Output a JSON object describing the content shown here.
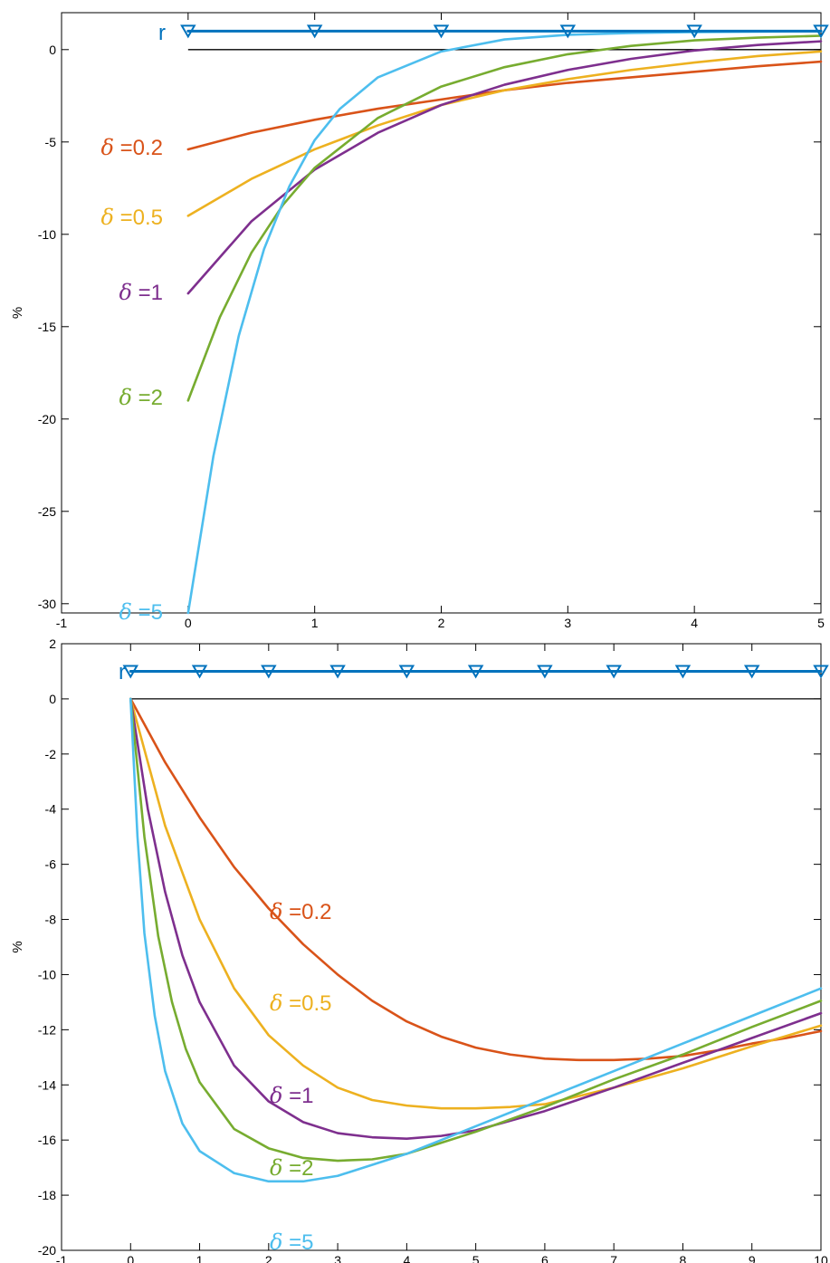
{
  "colors": {
    "r": "#0072BD",
    "d02": "#D95319",
    "d05": "#EDB120",
    "d1": "#7E2F8E",
    "d2": "#77AC30",
    "d5": "#4DBEEE",
    "axis": "#000000"
  },
  "chart_data": [
    {
      "type": "line",
      "title": "",
      "xlabel": "",
      "ylabel": "%",
      "xlim": [
        -1,
        5
      ],
      "ylim": [
        -30.5,
        2
      ],
      "xticks": [
        -1,
        0,
        1,
        2,
        3,
        4,
        5
      ],
      "yticks": [
        0,
        -5,
        -10,
        -15,
        -20,
        -25,
        -30
      ],
      "grid": false,
      "legend": "none; series labelled inline at left",
      "reference_line": {
        "y": 0,
        "x_from": 0,
        "x_to": 5
      },
      "series": [
        {
          "name": "r",
          "label_parts": [
            "r",
            ""
          ],
          "color_key": "r",
          "marker": "triangle-down",
          "x": [
            0,
            1,
            2,
            3,
            4,
            5
          ],
          "y": [
            1,
            1,
            1,
            1,
            1,
            1
          ],
          "marker_x": [
            0,
            1,
            2,
            3,
            4,
            5
          ]
        },
        {
          "name": "δ =0.2",
          "label_parts": [
            "δ",
            " =0.2"
          ],
          "color_key": "d02",
          "x": [
            0,
            0.5,
            1,
            1.5,
            2,
            2.5,
            3,
            3.5,
            4,
            4.5,
            5
          ],
          "y": [
            -5.4,
            -4.5,
            -3.8,
            -3.2,
            -2.7,
            -2.2,
            -1.8,
            -1.5,
            -1.2,
            -0.9,
            -0.65
          ]
        },
        {
          "name": "δ =0.5",
          "label_parts": [
            "δ",
            " =0.5"
          ],
          "color_key": "d05",
          "x": [
            0,
            0.5,
            1,
            1.5,
            2,
            2.5,
            3,
            3.5,
            4,
            4.5,
            5
          ],
          "y": [
            -9.0,
            -7.0,
            -5.4,
            -4.1,
            -3.0,
            -2.2,
            -1.6,
            -1.1,
            -0.7,
            -0.35,
            -0.1
          ]
        },
        {
          "name": "δ =1",
          "label_parts": [
            "δ",
            " =1"
          ],
          "color_key": "d1",
          "x": [
            0,
            0.5,
            1,
            1.5,
            2,
            2.5,
            3,
            3.5,
            4,
            4.5,
            5
          ],
          "y": [
            -13.2,
            -9.3,
            -6.5,
            -4.5,
            -3.0,
            -1.9,
            -1.1,
            -0.5,
            -0.05,
            0.25,
            0.45
          ]
        },
        {
          "name": "δ =2",
          "label_parts": [
            "δ",
            " =2"
          ],
          "color_key": "d2",
          "x": [
            0,
            0.25,
            0.5,
            0.75,
            1,
            1.5,
            2,
            2.5,
            3,
            3.5,
            4,
            4.5,
            5
          ],
          "y": [
            -19.0,
            -14.5,
            -11.0,
            -8.4,
            -6.4,
            -3.7,
            -2.0,
            -0.95,
            -0.25,
            0.2,
            0.5,
            0.65,
            0.75
          ]
        },
        {
          "name": "δ =5",
          "label_parts": [
            "δ",
            " =5"
          ],
          "color_key": "d5",
          "x": [
            0,
            0.2,
            0.4,
            0.6,
            0.8,
            1,
            1.2,
            1.5,
            2,
            2.5,
            3,
            3.5,
            4,
            5
          ],
          "y": [
            -30.5,
            -22.0,
            -15.5,
            -10.8,
            -7.4,
            -4.9,
            -3.2,
            -1.5,
            -0.1,
            0.55,
            0.8,
            0.9,
            0.95,
            1.0
          ]
        }
      ]
    },
    {
      "type": "line",
      "title": "",
      "xlabel": "",
      "ylabel": "%",
      "xlim": [
        -1,
        10
      ],
      "ylim": [
        -20,
        2
      ],
      "xticks": [
        -1,
        0,
        1,
        2,
        3,
        4,
        5,
        6,
        7,
        8,
        9,
        10
      ],
      "yticks": [
        2,
        0,
        -2,
        -4,
        -6,
        -8,
        -10,
        -12,
        -14,
        -16,
        -18,
        -20
      ],
      "grid": false,
      "legend": "none; series labelled inline",
      "reference_line": {
        "y": 0,
        "x_from": 0,
        "x_to": 10
      },
      "series": [
        {
          "name": "r",
          "label_parts": [
            "r",
            ""
          ],
          "color_key": "r",
          "marker": "triangle-down",
          "x": [
            0,
            10
          ],
          "y": [
            1,
            1
          ],
          "marker_x": [
            0,
            1,
            2,
            3,
            4,
            5,
            6,
            7,
            8,
            9,
            10
          ]
        },
        {
          "name": "δ =0.2",
          "label_parts": [
            "δ",
            " =0.2"
          ],
          "color_key": "d02",
          "x": [
            0,
            0.5,
            1,
            1.5,
            2,
            2.5,
            3,
            3.5,
            4,
            4.5,
            5,
            5.5,
            6,
            6.5,
            7,
            7.5,
            8,
            8.5,
            9,
            9.5,
            10
          ],
          "y": [
            0,
            -2.3,
            -4.3,
            -6.1,
            -7.6,
            -8.9,
            -10.0,
            -10.95,
            -11.7,
            -12.25,
            -12.65,
            -12.9,
            -13.05,
            -13.1,
            -13.1,
            -13.05,
            -12.95,
            -12.75,
            -12.5,
            -12.3,
            -12.05
          ]
        },
        {
          "name": "δ =0.5",
          "label_parts": [
            "δ",
            " =0.5"
          ],
          "color_key": "d05",
          "x": [
            0,
            0.5,
            1,
            1.5,
            2,
            2.5,
            3,
            3.5,
            4,
            4.5,
            5,
            5.5,
            6,
            7,
            8,
            9,
            10
          ],
          "y": [
            0,
            -4.6,
            -8.0,
            -10.5,
            -12.2,
            -13.3,
            -14.1,
            -14.55,
            -14.75,
            -14.85,
            -14.85,
            -14.8,
            -14.7,
            -14.1,
            -13.4,
            -12.6,
            -11.85
          ]
        },
        {
          "name": "δ =1",
          "label_parts": [
            "δ",
            " =1"
          ],
          "color_key": "d1",
          "x": [
            0,
            0.25,
            0.5,
            0.75,
            1,
            1.5,
            2,
            2.5,
            3,
            3.5,
            4,
            4.5,
            5,
            6,
            7,
            8,
            9,
            10
          ],
          "y": [
            0,
            -4.0,
            -7.0,
            -9.3,
            -11.0,
            -13.3,
            -14.6,
            -15.35,
            -15.75,
            -15.9,
            -15.95,
            -15.85,
            -15.65,
            -14.95,
            -14.1,
            -13.2,
            -12.3,
            -11.4
          ]
        },
        {
          "name": "δ =2",
          "label_parts": [
            "δ",
            " =2"
          ],
          "color_key": "d2",
          "x": [
            0,
            0.2,
            0.4,
            0.6,
            0.8,
            1,
            1.5,
            2,
            2.5,
            3,
            3.5,
            4,
            5,
            6,
            7,
            8,
            9,
            10
          ],
          "y": [
            0,
            -5.0,
            -8.6,
            -11.0,
            -12.7,
            -13.9,
            -15.6,
            -16.3,
            -16.65,
            -16.75,
            -16.7,
            -16.5,
            -15.7,
            -14.8,
            -13.8,
            -12.9,
            -11.9,
            -10.95
          ]
        },
        {
          "name": "δ =5",
          "label_parts": [
            "δ",
            " =5"
          ],
          "color_key": "d5",
          "x": [
            0,
            0.1,
            0.2,
            0.35,
            0.5,
            0.75,
            1,
            1.5,
            2,
            2.5,
            3,
            4,
            5,
            6,
            7,
            8,
            9,
            10
          ],
          "y": [
            0,
            -5.0,
            -8.5,
            -11.5,
            -13.5,
            -15.4,
            -16.4,
            -17.2,
            -17.5,
            -17.5,
            -17.3,
            -16.5,
            -15.5,
            -14.5,
            -13.5,
            -12.5,
            -11.5,
            -10.5
          ]
        }
      ]
    }
  ]
}
